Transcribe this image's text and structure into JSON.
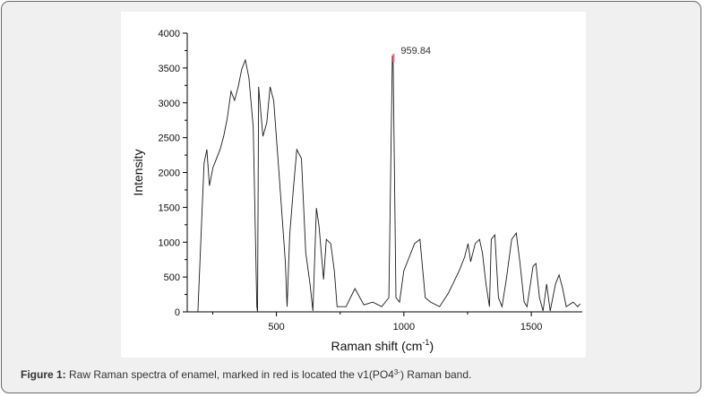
{
  "figure": {
    "caption_label": "Figure 1:",
    "caption_text_before": " Raw Raman spectra of enamel, marked in red is located the v1(PO4",
    "caption_superscript": "3-",
    "caption_text_after": ") Raman band.",
    "peak_annotation": "959.84",
    "peak_marker_color": "#ff6f8e",
    "line_color": "#1a1a1a"
  },
  "chart_data": {
    "type": "line",
    "title": "",
    "xlabel": "Raman shift (cm-1)",
    "xlabel_main": "Raman shift (cm",
    "xlabel_sup": "-1",
    "xlabel_end": ")",
    "ylabel": "Intensity",
    "xlim": [
      150,
      1700
    ],
    "ylim": [
      0,
      4000
    ],
    "x_ticks": [
      500,
      1000,
      1500
    ],
    "x_tick_labels": [
      "500",
      "1000",
      "1500"
    ],
    "x_minor_ticks": [
      250,
      750,
      1250
    ],
    "y_ticks": [
      0,
      500,
      1000,
      1500,
      2000,
      2500,
      3000,
      3500,
      4000
    ],
    "y_tick_labels": [
      "0",
      "500",
      "1000",
      "1500",
      "2000",
      "2500",
      "3000",
      "3500",
      "4000"
    ],
    "grid": false,
    "legend": null,
    "annotations": [
      {
        "x": 959.84,
        "y": 3680,
        "text": "959.84",
        "color": "#ff6f8e"
      }
    ],
    "series": [
      {
        "name": "Raw Raman spectrum of enamel",
        "x": [
          192,
          216,
          227,
          237,
          251,
          265,
          279,
          293,
          307,
          322,
          336,
          350,
          364,
          378,
          392,
          409,
          423,
          426,
          430,
          447,
          462,
          475,
          489,
          510,
          535,
          542,
          552,
          566,
          580,
          598,
          615,
          632,
          643,
          657,
          667,
          685,
          696,
          713,
          727,
          738,
          773,
          808,
          843,
          878,
          913,
          941,
          955,
          958,
          969,
          983,
          1000,
          1021,
          1042,
          1063,
          1084,
          1105,
          1140,
          1175,
          1192,
          1217,
          1238,
          1252,
          1262,
          1280,
          1297,
          1308,
          1322,
          1336,
          1343,
          1357,
          1371,
          1385,
          1402,
          1423,
          1441,
          1455,
          1472,
          1483,
          1507,
          1518,
          1532,
          1546,
          1560,
          1574,
          1595,
          1609,
          1623,
          1637,
          1664,
          1682,
          1692
        ],
        "y": [
          0,
          2135,
          2330,
          1810,
          2070,
          2200,
          2330,
          2520,
          2780,
          3165,
          3035,
          3230,
          3485,
          3615,
          3355,
          2650,
          75,
          0,
          3230,
          2520,
          2715,
          3230,
          3035,
          2005,
          720,
          75,
          1105,
          1750,
          2330,
          2200,
          850,
          400,
          13,
          1490,
          1235,
          465,
          1040,
          980,
          590,
          75,
          75,
          335,
          100,
          140,
          75,
          205,
          3680,
          3550,
          205,
          140,
          590,
          785,
          980,
          1040,
          205,
          140,
          75,
          270,
          400,
          590,
          785,
          980,
          720,
          980,
          1040,
          850,
          400,
          75,
          1040,
          1105,
          205,
          75,
          465,
          1040,
          1130,
          720,
          140,
          75,
          655,
          695,
          205,
          13,
          400,
          13,
          400,
          530,
          335,
          75,
          140,
          75,
          115
        ]
      }
    ]
  }
}
